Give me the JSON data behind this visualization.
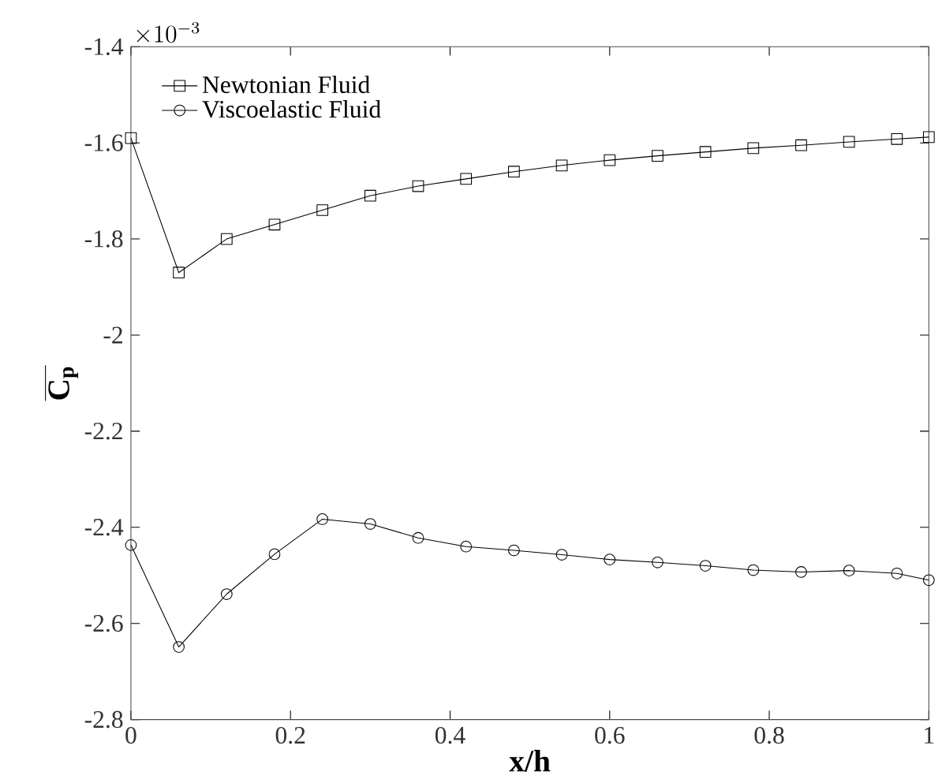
{
  "chart_data": {
    "type": "line",
    "xlabel": "x/h",
    "ylabel": "\\overline{\\mathbf{C}_{\\mathbf{p}}}",
    "annotations": [
      "\\times 10^{-3}"
    ],
    "x": [
      0,
      0.06,
      0.12,
      0.18,
      0.24,
      0.3,
      0.36,
      0.42,
      0.48,
      0.54,
      0.6,
      0.66,
      0.72,
      0.78,
      0.84,
      0.9,
      0.96,
      1
    ],
    "series": [
      {
        "name": "Newtonian Fluid",
        "color": "#000000",
        "marker": "square",
        "values": [
          -1.59,
          -1.87,
          -1.8,
          -1.77,
          -1.74,
          -1.71,
          -1.69,
          -1.675,
          -1.66,
          -1.647,
          -1.636,
          -1.627,
          -1.619,
          -1.611,
          -1.605,
          -1.598,
          -1.592,
          -1.588
        ]
      },
      {
        "name": "Viscoelastic Fluid",
        "color": "#000000",
        "marker": "circle",
        "values": [
          -2.437,
          -2.649,
          -2.539,
          -2.456,
          -2.383,
          -2.393,
          -2.422,
          -2.44,
          -2.448,
          -2.457,
          -2.467,
          -2.473,
          -2.48,
          -2.489,
          -2.493,
          -2.49,
          -2.496,
          -2.51
        ]
      }
    ],
    "xlim": [
      0,
      1
    ],
    "ylim": [
      -2.8,
      -1.4
    ],
    "xticks": [
      0,
      0.2,
      0.4,
      0.6,
      0.8,
      1
    ],
    "yticks": [
      -2.8,
      -2.6,
      -2.4,
      -2.2,
      -2,
      -1.8,
      -1.6,
      -1.4
    ],
    "grid": false,
    "legend": "top left",
    "line_style": "solid"
  }
}
